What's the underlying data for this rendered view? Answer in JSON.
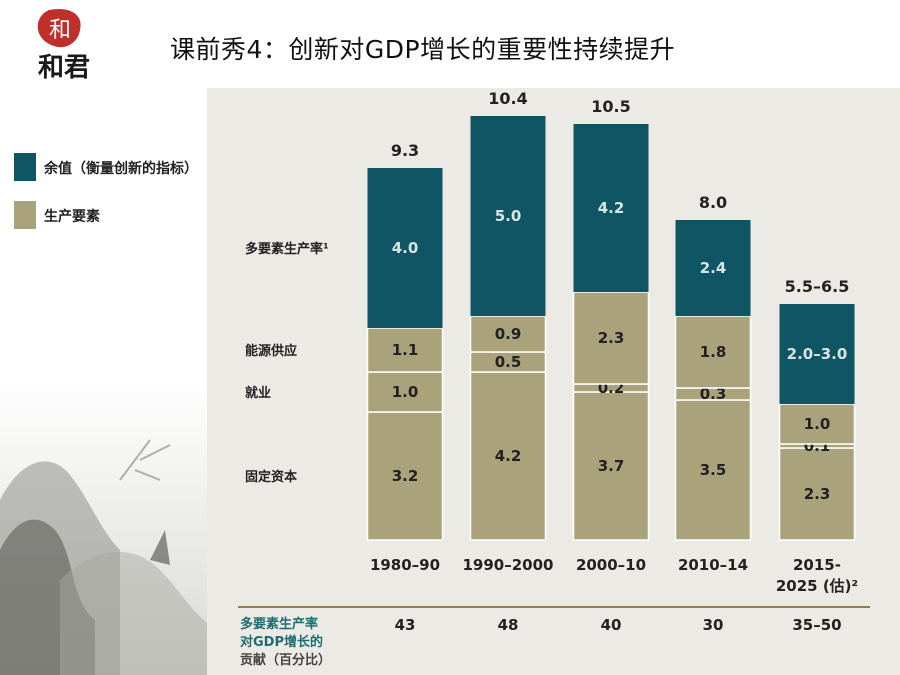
{
  "slide": {
    "title": "课前秀4：创新对GDP增长的重要性持续提升",
    "logo_text": "和君",
    "logo_seal_text": "和"
  },
  "legend": [
    {
      "label": "余值（衡量创新的指标）",
      "color": "#0f5563"
    },
    {
      "label": "生产要素",
      "color": "#a9a27b"
    }
  ],
  "chart_data": {
    "type": "bar",
    "stacked": true,
    "categories": [
      "1980–90",
      "1990–2000",
      "2000–10",
      "2010–14",
      "2015-\n2025 (估)²"
    ],
    "totals": [
      "9.3",
      "10.4",
      "10.5",
      "8.0",
      "5.5–6.5"
    ],
    "series": [
      {
        "name": "固定资本",
        "values": [
          3.2,
          4.2,
          3.7,
          3.5,
          2.3
        ],
        "labels": [
          "3.2",
          "4.2",
          "3.7",
          "3.5",
          "2.3"
        ]
      },
      {
        "name": "就业",
        "values": [
          1.0,
          0.5,
          0.2,
          0.3,
          0.1
        ],
        "labels": [
          "1.0",
          "0.5",
          "0.2",
          "0.3",
          "0.1"
        ]
      },
      {
        "name": "能源供应",
        "values": [
          1.1,
          0.9,
          2.3,
          1.8,
          1.0
        ],
        "labels": [
          "1.1",
          "0.9",
          "2.3",
          "1.8",
          "1.0"
        ]
      },
      {
        "name": "多要素生产率¹",
        "values": [
          4.0,
          5.0,
          4.2,
          2.4,
          2.5
        ],
        "labels": [
          "4.0",
          "5.0",
          "4.2",
          "2.4",
          "2.0–3.0"
        ]
      }
    ],
    "colors": {
      "tfp": "#0f5563",
      "factor": "#a9a27b",
      "label_dark": "#222222",
      "label_light": "#d8e4e4"
    },
    "contribution_label": [
      "多要素生产率",
      "对GDP增长的",
      "贡献（百分比）"
    ],
    "contribution_values": [
      "43",
      "48",
      "40",
      "30",
      "35–50"
    ]
  }
}
